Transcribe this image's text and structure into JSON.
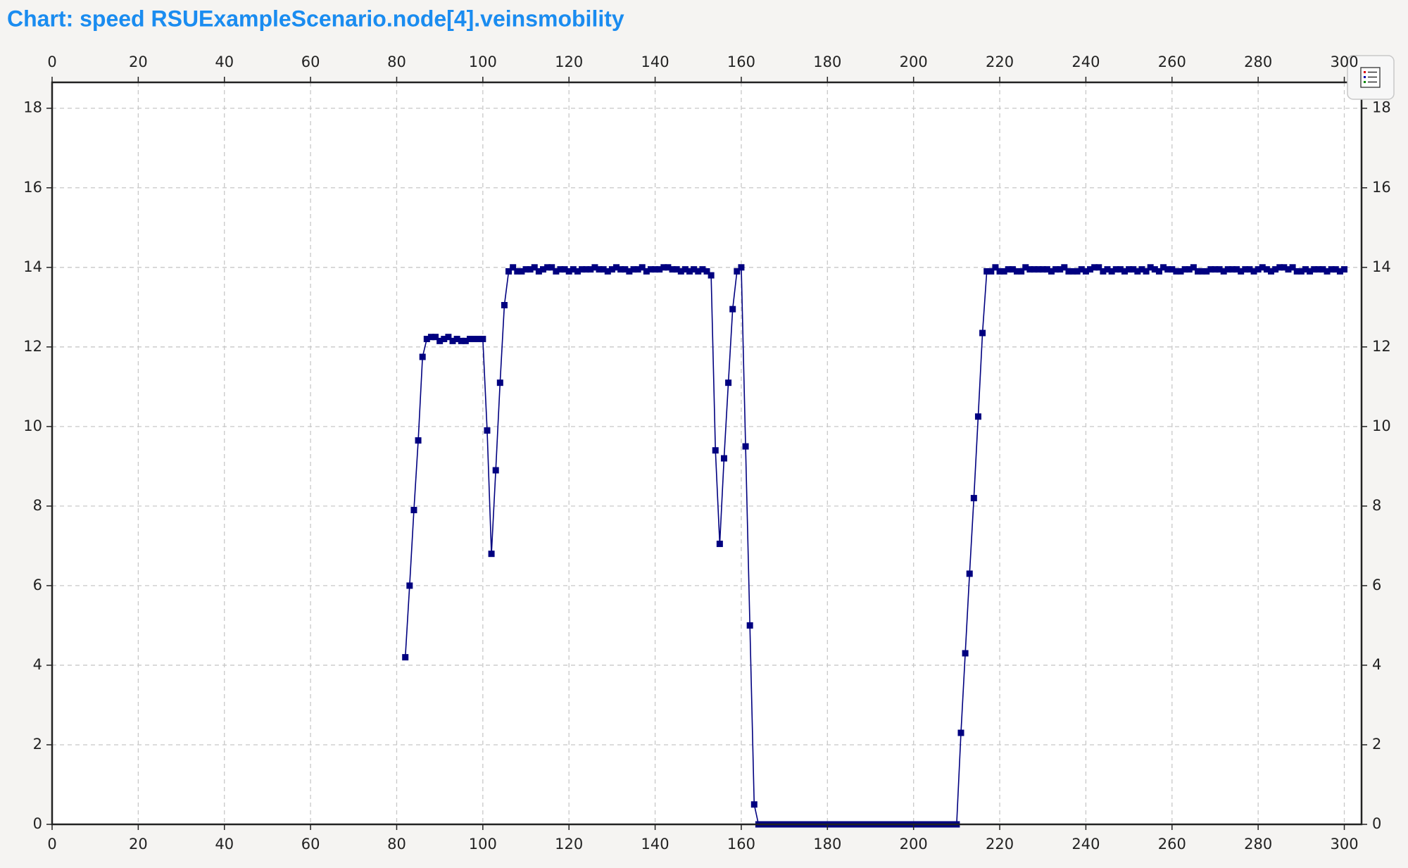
{
  "chart_data": {
    "type": "line",
    "title": "Chart: speed RSUExampleScenario.node[4].veinsmobility",
    "color": "#000080",
    "grid": true,
    "xlim": [
      0,
      304
    ],
    "ylim": [
      0,
      18.65
    ],
    "xticks": [
      0,
      20,
      40,
      60,
      80,
      100,
      120,
      140,
      160,
      180,
      200,
      220,
      240,
      260,
      280,
      300
    ],
    "yticks": [
      0,
      2,
      4,
      6,
      8,
      10,
      12,
      14,
      16,
      18
    ],
    "x": [
      82,
      83,
      84,
      85,
      86,
      87,
      88,
      89,
      90,
      91,
      92,
      93,
      94,
      95,
      96,
      97,
      98,
      99,
      100,
      101,
      102,
      103,
      104,
      105,
      106,
      107,
      108,
      109,
      110,
      111,
      112,
      113,
      114,
      115,
      116,
      117,
      118,
      119,
      120,
      121,
      122,
      123,
      124,
      125,
      126,
      127,
      128,
      129,
      130,
      131,
      132,
      133,
      134,
      135,
      136,
      137,
      138,
      139,
      140,
      141,
      142,
      143,
      144,
      145,
      146,
      147,
      148,
      149,
      150,
      151,
      152,
      153,
      154,
      155,
      156,
      157,
      158,
      159,
      160,
      161,
      162,
      163,
      164,
      165,
      166,
      167,
      168,
      169,
      170,
      171,
      172,
      173,
      174,
      175,
      176,
      177,
      178,
      179,
      180,
      181,
      182,
      183,
      184,
      185,
      186,
      187,
      188,
      189,
      190,
      191,
      192,
      193,
      194,
      195,
      196,
      197,
      198,
      199,
      200,
      201,
      202,
      203,
      204,
      205,
      206,
      207,
      208,
      209,
      210,
      211,
      212,
      213,
      214,
      215,
      216,
      217,
      218,
      219,
      220,
      221,
      222,
      223,
      224,
      225,
      226,
      227,
      228,
      229,
      230,
      231,
      232,
      233,
      234,
      235,
      236,
      237,
      238,
      239,
      240,
      241,
      242,
      243,
      244,
      245,
      246,
      247,
      248,
      249,
      250,
      251,
      252,
      253,
      254,
      255,
      256,
      257,
      258,
      259,
      260,
      261,
      262,
      263,
      264,
      265,
      266,
      267,
      268,
      269,
      270,
      271,
      272,
      273,
      274,
      275,
      276,
      277,
      278,
      279,
      280,
      281,
      282,
      283,
      284,
      285,
      286,
      287,
      288,
      289,
      290,
      291,
      292,
      293,
      294,
      295,
      296,
      297,
      298,
      299,
      300
    ],
    "values": [
      4.2,
      6.0,
      7.9,
      9.65,
      11.75,
      12.2,
      12.25,
      12.25,
      12.15,
      12.2,
      12.25,
      12.15,
      12.2,
      12.15,
      12.15,
      12.2,
      12.2,
      12.2,
      12.2,
      9.9,
      6.8,
      8.9,
      11.1,
      13.05,
      13.9,
      14.0,
      13.9,
      13.9,
      13.95,
      13.95,
      14.0,
      13.9,
      13.95,
      14.0,
      14.0,
      13.9,
      13.95,
      13.95,
      13.9,
      13.95,
      13.9,
      13.95,
      13.95,
      13.95,
      14.0,
      13.95,
      13.95,
      13.9,
      13.95,
      14.0,
      13.95,
      13.95,
      13.9,
      13.95,
      13.95,
      14.0,
      13.9,
      13.95,
      13.95,
      13.95,
      14.0,
      14.0,
      13.95,
      13.95,
      13.9,
      13.95,
      13.9,
      13.95,
      13.9,
      13.95,
      13.9,
      13.8,
      9.4,
      7.05,
      9.2,
      11.1,
      12.95,
      13.9,
      14.0,
      9.5,
      5.0,
      0.5,
      0,
      0,
      0,
      0,
      0,
      0,
      0,
      0,
      0,
      0,
      0,
      0,
      0,
      0,
      0,
      0,
      0,
      0,
      0,
      0,
      0,
      0,
      0,
      0,
      0,
      0,
      0,
      0,
      0,
      0,
      0,
      0,
      0,
      0,
      0,
      0,
      0,
      0,
      0,
      0,
      0,
      0,
      0,
      0,
      0,
      0,
      0,
      2.3,
      4.3,
      6.3,
      8.2,
      10.25,
      12.35,
      13.9,
      13.9,
      14.0,
      13.9,
      13.9,
      13.95,
      13.95,
      13.9,
      13.9,
      14.0,
      13.95,
      13.95,
      13.95,
      13.95,
      13.95,
      13.9,
      13.95,
      13.95,
      14.0,
      13.9,
      13.9,
      13.9,
      13.95,
      13.9,
      13.95,
      14.0,
      14.0,
      13.9,
      13.95,
      13.9,
      13.95,
      13.95,
      13.9,
      13.95,
      13.95,
      13.9,
      13.95,
      13.9,
      14.0,
      13.95,
      13.9,
      14.0,
      13.95,
      13.95,
      13.9,
      13.9,
      13.95,
      13.95,
      14.0,
      13.9,
      13.9,
      13.9,
      13.95,
      13.95,
      13.95,
      13.9,
      13.95,
      13.95,
      13.95,
      13.9,
      13.95,
      13.95,
      13.9,
      13.95,
      14.0,
      13.95,
      13.9,
      13.95,
      14.0,
      14.0,
      13.95,
      14.0,
      13.9,
      13.9,
      13.95,
      13.9,
      13.95,
      13.95,
      13.95,
      13.9,
      13.95,
      13.95,
      13.9,
      13.95
    ]
  }
}
